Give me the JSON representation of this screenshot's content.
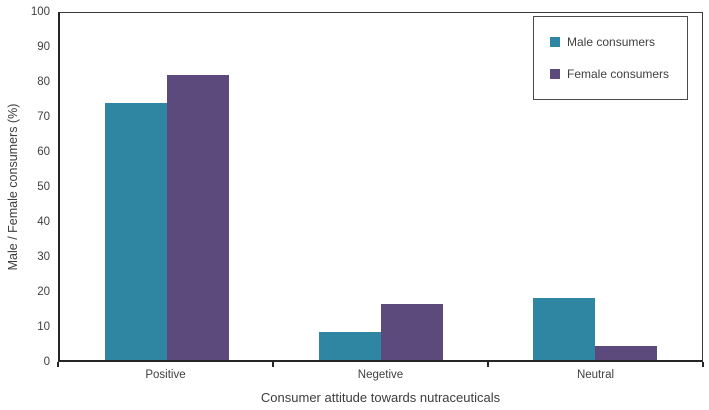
{
  "chart_data": {
    "type": "bar",
    "title": "",
    "categories": [
      "Positive",
      "Negetive",
      "Neutral"
    ],
    "series": [
      {
        "name": "Male consumers",
        "color": "#2e86a2",
        "values": [
          74,
          8,
          18
        ]
      },
      {
        "name": "Female consumers",
        "color": "#5c4a7d",
        "values": [
          82,
          16,
          4
        ]
      }
    ],
    "xlabel": "Consumer attitude towards nutraceuticals",
    "ylabel": "Male / Female consumers (%)",
    "ylim": [
      0,
      100
    ],
    "yticks": [
      0,
      10,
      20,
      30,
      40,
      50,
      60,
      70,
      80,
      90,
      100
    ],
    "grid": false,
    "legend_position": "top-right",
    "axis_color": "#262626",
    "text_color": "#404040"
  }
}
